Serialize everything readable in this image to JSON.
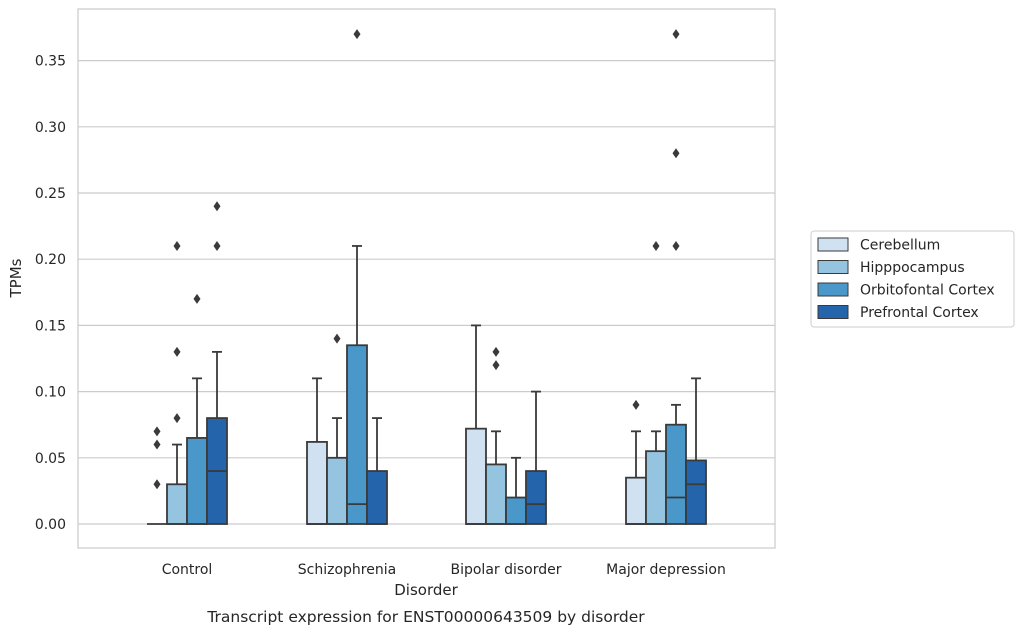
{
  "chart_data": {
    "type": "boxplot",
    "title": "",
    "caption": "Transcript expression for ENST00000643509 by disorder",
    "xlabel": "Disorder",
    "ylabel": "TPMs",
    "ylim": [
      -0.018,
      0.388
    ],
    "yticks": [
      0.0,
      0.05,
      0.1,
      0.15,
      0.2,
      0.25,
      0.3,
      0.35
    ],
    "ytick_labels": [
      "0.00",
      "0.05",
      "0.10",
      "0.15",
      "0.20",
      "0.25",
      "0.30",
      "0.35"
    ],
    "grid": "horizontal",
    "legend_position": "right",
    "categories": [
      "Control",
      "Schizophrenia",
      "Bipolar disorder",
      "Major depression"
    ],
    "series": [
      {
        "name": "Cerebellum",
        "color": "#d0e1f2",
        "boxes": [
          {
            "q1": 0.0,
            "median": 0.0,
            "q3": 0.0,
            "whisker_low": 0.0,
            "whisker_high": 0.0,
            "outliers": [
              0.03,
              0.06,
              0.07
            ]
          },
          {
            "q1": 0.0,
            "median": 0.0,
            "q3": 0.062,
            "whisker_low": 0.0,
            "whisker_high": 0.11,
            "outliers": []
          },
          {
            "q1": 0.0,
            "median": 0.0,
            "q3": 0.072,
            "whisker_low": 0.0,
            "whisker_high": 0.15,
            "outliers": []
          },
          {
            "q1": 0.0,
            "median": 0.0,
            "q3": 0.035,
            "whisker_low": 0.0,
            "whisker_high": 0.07,
            "outliers": [
              0.09
            ]
          }
        ]
      },
      {
        "name": "Hipppocampus",
        "color": "#94c4df",
        "boxes": [
          {
            "q1": 0.0,
            "median": 0.0,
            "q3": 0.03,
            "whisker_low": 0.0,
            "whisker_high": 0.06,
            "outliers": [
              0.08,
              0.13,
              0.21
            ]
          },
          {
            "q1": 0.0,
            "median": 0.0,
            "q3": 0.05,
            "whisker_low": 0.0,
            "whisker_high": 0.08,
            "outliers": [
              0.14
            ]
          },
          {
            "q1": 0.0,
            "median": 0.0,
            "q3": 0.045,
            "whisker_low": 0.0,
            "whisker_high": 0.07,
            "outliers": [
              0.12,
              0.13
            ]
          },
          {
            "q1": 0.0,
            "median": 0.0,
            "q3": 0.055,
            "whisker_low": 0.0,
            "whisker_high": 0.07,
            "outliers": [
              0.21
            ]
          }
        ]
      },
      {
        "name": "Orbitofontal Cortex",
        "color": "#4a98c9",
        "boxes": [
          {
            "q1": 0.0,
            "median": 0.0,
            "q3": 0.065,
            "whisker_low": 0.0,
            "whisker_high": 0.11,
            "outliers": [
              0.17
            ]
          },
          {
            "q1": 0.0,
            "median": 0.015,
            "q3": 0.135,
            "whisker_low": 0.0,
            "whisker_high": 0.21,
            "outliers": [
              0.37
            ]
          },
          {
            "q1": 0.0,
            "median": 0.0,
            "q3": 0.02,
            "whisker_low": 0.0,
            "whisker_high": 0.05,
            "outliers": []
          },
          {
            "q1": 0.0,
            "median": 0.02,
            "q3": 0.075,
            "whisker_low": 0.0,
            "whisker_high": 0.09,
            "outliers": [
              0.21,
              0.28,
              0.37
            ]
          }
        ]
      },
      {
        "name": "Prefrontal Cortex",
        "color": "#2464ab",
        "boxes": [
          {
            "q1": 0.0,
            "median": 0.04,
            "q3": 0.08,
            "whisker_low": 0.0,
            "whisker_high": 0.13,
            "outliers": [
              0.21,
              0.24
            ]
          },
          {
            "q1": 0.0,
            "median": 0.0,
            "q3": 0.04,
            "whisker_low": 0.0,
            "whisker_high": 0.08,
            "outliers": []
          },
          {
            "q1": 0.0,
            "median": 0.015,
            "q3": 0.04,
            "whisker_low": 0.0,
            "whisker_high": 0.1,
            "outliers": []
          },
          {
            "q1": 0.0,
            "median": 0.03,
            "q3": 0.048,
            "whisker_low": 0.0,
            "whisker_high": 0.11,
            "outliers": []
          }
        ]
      }
    ]
  }
}
